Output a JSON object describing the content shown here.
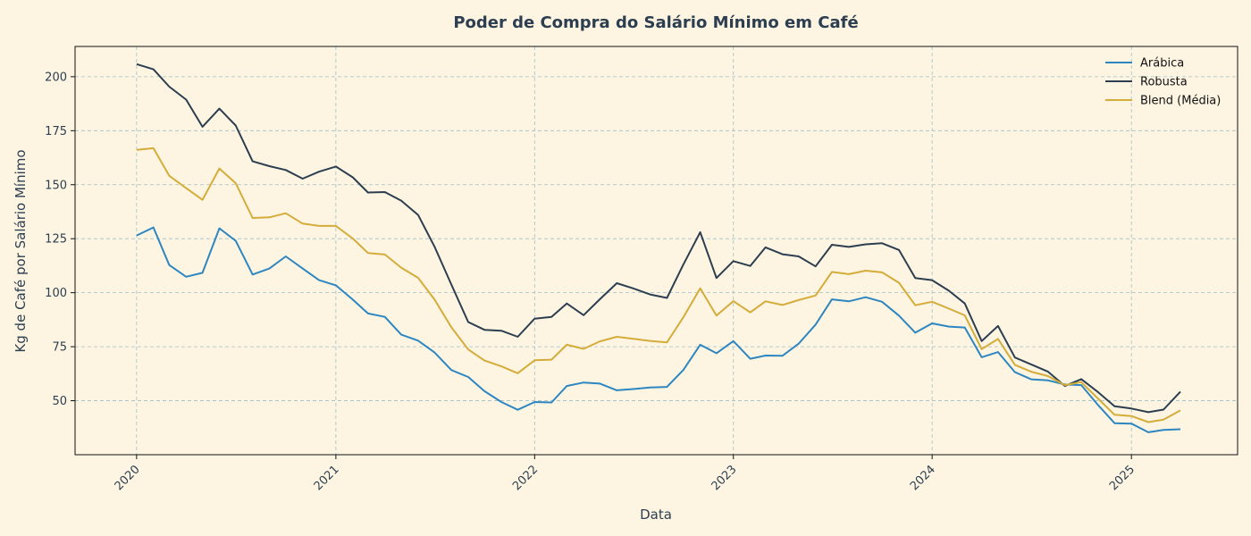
{
  "chart_data": {
    "type": "line",
    "title": "Poder de Compra do Salário Mínimo em Café",
    "xlabel": "Data",
    "ylabel": "Kg de Café por Salário Mínimo",
    "x_start": "2020-01",
    "x_step": "month",
    "xlim": [
      "2019-09-10",
      "2025-07-15"
    ],
    "ylim": [
      25,
      214
    ],
    "x_ticks": [
      "2020",
      "2021",
      "2022",
      "2023",
      "2024",
      "2025"
    ],
    "y_ticks": [
      50,
      75,
      100,
      125,
      150,
      175,
      200
    ],
    "grid": true,
    "legend_position": "top-right",
    "series": [
      {
        "name": "Arábica",
        "color": "#2e86c1",
        "values": [
          126.5,
          130.2,
          112.8,
          107.4,
          109.2,
          129.8,
          124.0,
          108.4,
          111.2,
          116.8,
          111.2,
          105.8,
          103.4,
          96.8,
          90.4,
          88.8,
          80.6,
          77.8,
          72.4,
          64.2,
          61.0,
          54.4,
          49.4,
          45.8,
          49.4,
          49.2,
          56.8,
          58.4,
          57.9,
          54.8,
          55.4,
          56.1,
          56.4,
          64.2,
          75.9,
          72.0,
          77.6,
          69.4,
          70.9,
          70.8,
          76.4,
          85.2,
          96.9,
          96.0,
          97.9,
          95.8,
          89.4,
          81.5,
          85.8,
          84.3,
          83.9,
          70.1,
          72.5,
          63.2,
          59.9,
          59.4,
          57.5,
          57.2,
          47.9,
          39.6,
          39.4,
          35.4,
          36.5,
          36.8
        ]
      },
      {
        "name": "Robusta",
        "color": "#2c3e50",
        "values": [
          205.8,
          203.4,
          195.4,
          189.4,
          176.8,
          185.2,
          177.4,
          160.8,
          158.6,
          156.8,
          152.8,
          156.0,
          158.4,
          153.4,
          146.4,
          146.6,
          142.6,
          136.0,
          121.4,
          103.8,
          86.4,
          82.8,
          82.4,
          79.6,
          88.0,
          88.8,
          95.0,
          89.6,
          97.0,
          104.4,
          102.0,
          99.2,
          97.6,
          113.0,
          128.0,
          106.8,
          114.6,
          112.4,
          121.0,
          117.8,
          116.8,
          112.2,
          122.2,
          121.2,
          122.4,
          122.9,
          119.8,
          106.8,
          105.8,
          100.9,
          95.0,
          77.6,
          84.6,
          70.0,
          66.8,
          63.4,
          56.8,
          60.0,
          53.9,
          47.4,
          46.4,
          44.7,
          45.9,
          54.2
        ]
      },
      {
        "name": "Blend (Média)",
        "color": "#d4ac3a",
        "values": [
          166.1,
          166.9,
          154.1,
          148.4,
          143.0,
          157.5,
          150.7,
          134.6,
          134.9,
          136.8,
          132.0,
          130.9,
          130.9,
          125.1,
          118.4,
          117.7,
          111.6,
          106.9,
          96.9,
          84.0,
          73.7,
          68.6,
          65.9,
          62.7,
          68.7,
          69.0,
          75.9,
          74.0,
          77.5,
          79.6,
          78.7,
          77.7,
          77.0,
          88.6,
          102.0,
          89.4,
          96.1,
          90.9,
          96.0,
          94.3,
          96.6,
          98.7,
          109.6,
          108.6,
          110.2,
          109.4,
          104.6,
          94.2,
          95.8,
          92.6,
          89.5,
          73.9,
          78.6,
          66.6,
          63.4,
          61.4,
          57.2,
          58.6,
          50.9,
          43.5,
          42.9,
          40.1,
          41.2,
          45.5
        ]
      }
    ]
  }
}
